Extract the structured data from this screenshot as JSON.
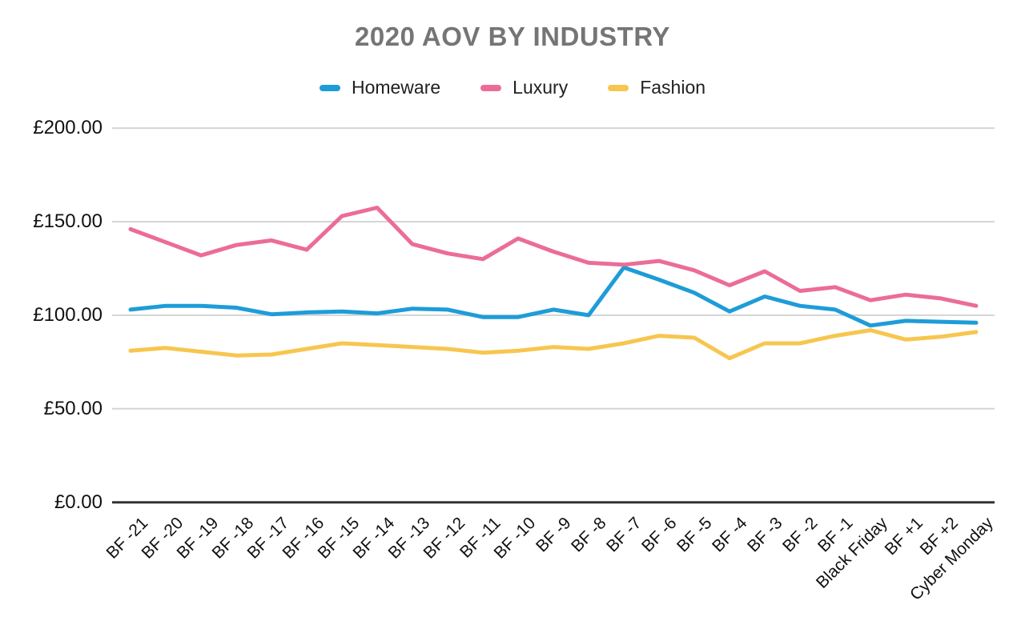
{
  "colors": {
    "background": "#ffffff",
    "title_text": "#757575",
    "axis_label_text": "#111111",
    "gridline": "#d5d5d5",
    "zero_axis_line": "#333333",
    "homeware": "#1e9cd8",
    "luxury": "#eb6d97",
    "fashion": "#f7c64f"
  },
  "chart_data": {
    "type": "line",
    "title": "2020 AOV BY INDUSTRY",
    "currency": "£",
    "xlabel": "",
    "ylabel": "",
    "ylim": [
      0,
      200
    ],
    "grid": true,
    "legend_position": "top",
    "x_label_rotation": -45,
    "categories": [
      "BF -21",
      "BF -20",
      "BF -19",
      "BF -18",
      "BF -17",
      "BF -16",
      "BF -15",
      "BF -14",
      "BF -13",
      "BF -12",
      "BF -11",
      "BF -10",
      "BF -9",
      "BF -8",
      "BF -7",
      "BF -6",
      "BF -5",
      "BF -4",
      "BF -3",
      "BF -2",
      "BF -1",
      "Black Friday",
      "BF +1",
      "BF +2",
      "Cyber Monday"
    ],
    "y_ticks": [
      {
        "value": 0,
        "label": "£0.00"
      },
      {
        "value": 50,
        "label": "£50.00"
      },
      {
        "value": 100,
        "label": "£100.00"
      },
      {
        "value": 150,
        "label": "£150.00"
      },
      {
        "value": 200,
        "label": "£200.00"
      }
    ],
    "series": [
      {
        "name": "Homeware",
        "color": "#1e9cd8",
        "values": [
          103,
          105,
          105,
          104,
          100.5,
          101.5,
          102,
          101,
          103.5,
          103,
          99,
          99,
          103,
          100,
          125.5,
          119,
          112,
          102,
          110,
          105,
          103,
          94.5,
          97,
          96.5,
          96
        ]
      },
      {
        "name": "Luxury",
        "color": "#eb6d97",
        "values": [
          146,
          139,
          132,
          137.5,
          140,
          135,
          153,
          157.5,
          138,
          133,
          130,
          141,
          134,
          128,
          127,
          129,
          124,
          116,
          123.5,
          113,
          115,
          108,
          111,
          109,
          105
        ]
      },
      {
        "name": "Fashion",
        "color": "#f7c64f",
        "values": [
          81,
          82.5,
          80.5,
          78.5,
          79,
          82,
          85,
          84,
          83,
          82,
          80,
          81,
          83,
          82,
          85,
          89,
          88,
          77,
          85,
          85,
          89,
          92,
          87,
          88.5,
          91
        ]
      }
    ]
  }
}
